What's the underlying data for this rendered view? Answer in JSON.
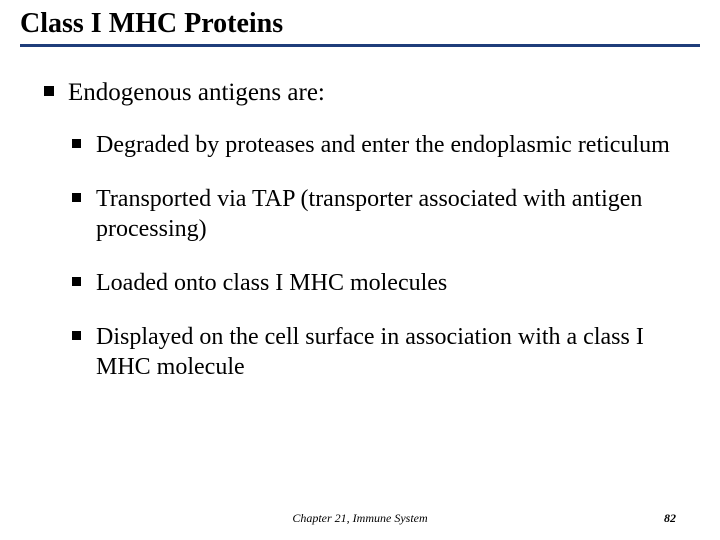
{
  "title": "Class I MHC Proteins",
  "colors": {
    "underline": "#1f3d7a",
    "text": "#000000",
    "background": "#ffffff",
    "bullet": "#000000"
  },
  "typography": {
    "title_fontsize": 28,
    "l1_fontsize": 25,
    "l2_fontsize": 24,
    "footer_fontsize": 12,
    "font_family": "Times New Roman"
  },
  "bullets": {
    "l1": [
      {
        "text": "Endogenous antigens are:"
      }
    ],
    "l2": [
      {
        "text": "Degraded by proteases and enter the endoplasmic reticulum"
      },
      {
        "text": "Transported via TAP (transporter associated with antigen processing)"
      },
      {
        "text": "Loaded onto class I MHC molecules"
      },
      {
        "text": "Displayed on the cell surface in association with a class I MHC molecule"
      }
    ]
  },
  "footer": {
    "center": "Chapter 21, Immune System",
    "page": "82"
  }
}
